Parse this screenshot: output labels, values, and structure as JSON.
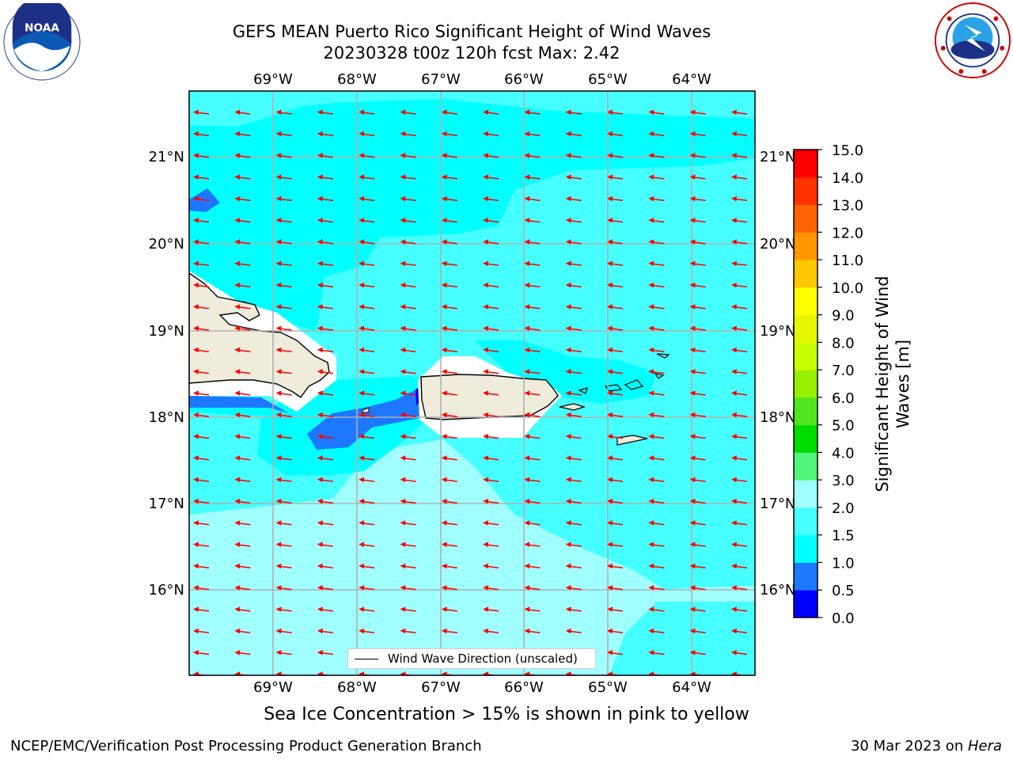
{
  "title": {
    "line1": "GEFS MEAN Puerto Rico Significant Height of Wind Waves",
    "line2": "20230328 t00z 120h fcst   Max: 2.42"
  },
  "logos": {
    "left": "noaa-logo",
    "left_text": "NOAA",
    "right": "nws-logo"
  },
  "map": {
    "lon_labels": [
      "69°W",
      "68°W",
      "67°W",
      "66°W",
      "65°W",
      "64°W"
    ],
    "lat_labels": [
      "21°N",
      "20°N",
      "19°N",
      "18°N",
      "17°N",
      "16°N"
    ],
    "land_color": "#efecdc",
    "arrow_color": "#ff0000",
    "arrow_direction": "west",
    "legend_label": "Wind Wave Direction (unscaled)"
  },
  "colorbar": {
    "label": "Significant Height of Wind Waves [m]",
    "ticks": [
      "0.0",
      "0.5",
      "1.0",
      "1.5",
      "2.0",
      "3.0",
      "4.0",
      "5.0",
      "6.0",
      "7.0",
      "8.0",
      "9.0",
      "10.0",
      "11.0",
      "12.0",
      "13.0",
      "14.0",
      "15.0"
    ],
    "colors": [
      "#0000ff",
      "#1e78ff",
      "#00ffff",
      "#46ffff",
      "#a0ffff",
      "#50f57a",
      "#00dc00",
      "#50e61e",
      "#96f000",
      "#c8ff00",
      "#e6f500",
      "#ffff00",
      "#ffc800",
      "#ff9600",
      "#ff6400",
      "#ff3200",
      "#ff0000"
    ]
  },
  "ice_note": "Sea Ice Concentration > 15% is shown in pink to yellow",
  "footer": {
    "left": "NCEP/EMC/Verification Post Processing Product Generation Branch",
    "right_prefix": "30 Mar 2023 on ",
    "right_host": "Hera"
  }
}
